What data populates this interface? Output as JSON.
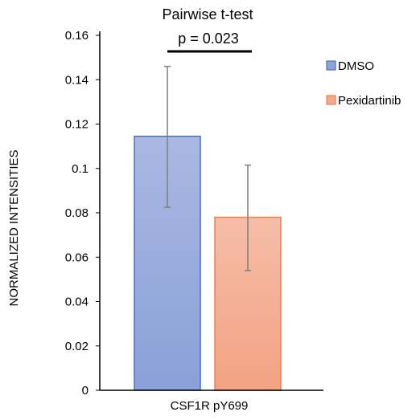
{
  "chart_data": {
    "type": "bar",
    "title": "Pairwise t-test",
    "annotation": "p = 0.023",
    "xlabel": "",
    "ylabel": "NORMALIZED INTENSITIES",
    "category_label": "CSF1R pY699",
    "ylim": [
      0,
      0.16
    ],
    "yticks": [
      "0",
      "0.02",
      "0.04",
      "0.06",
      "0.08",
      "0.1",
      "0.12",
      "0.14",
      "0.16"
    ],
    "series": [
      {
        "name": "DMSO",
        "value": 0.1145,
        "error_low": 0.0825,
        "error_high": 0.146,
        "color": "#8fa3d9",
        "edge": "#4a6fbf"
      },
      {
        "name": "Pexidartinib",
        "value": 0.078,
        "error_low": 0.054,
        "error_high": 0.1015,
        "color": "#f5a88a",
        "edge": "#e8834f"
      }
    ],
    "legend_position": "right",
    "grid": false
  }
}
